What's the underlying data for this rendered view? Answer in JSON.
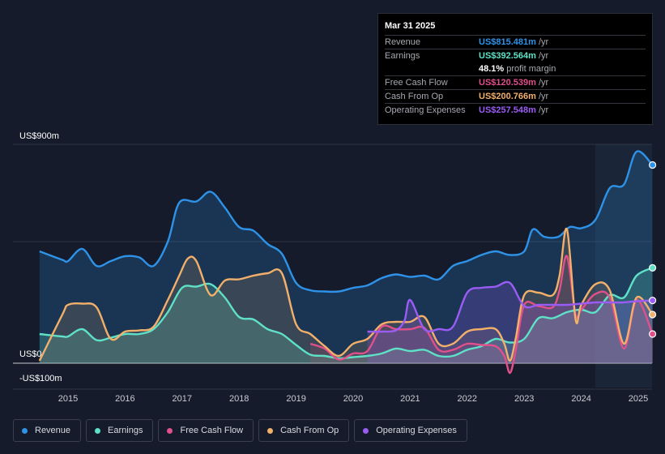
{
  "tooltip": {
    "date": "Mar 31 2025",
    "rows": [
      {
        "name": "Revenue",
        "value": "US$815.481m",
        "unit": "/yr",
        "color": "#2e93e8"
      },
      {
        "name": "Earnings",
        "value": "US$392.564m",
        "unit": "/yr",
        "color": "#5ee1c6"
      },
      {
        "name": "",
        "value": "48.1%",
        "unit": "profit margin",
        "color": "#ffffff"
      },
      {
        "name": "Free Cash Flow",
        "value": "US$120.539m",
        "unit": "/yr",
        "color": "#e0508a"
      },
      {
        "name": "Cash From Op",
        "value": "US$200.766m",
        "unit": "/yr",
        "color": "#f2b06a"
      },
      {
        "name": "Operating Expenses",
        "value": "US$257.548m",
        "unit": "/yr",
        "color": "#9b5cf5"
      }
    ]
  },
  "legend": [
    {
      "label": "Revenue",
      "color": "#2e93e8"
    },
    {
      "label": "Earnings",
      "color": "#5ee1c6"
    },
    {
      "label": "Free Cash Flow",
      "color": "#e0508a"
    },
    {
      "label": "Cash From Op",
      "color": "#f2b06a"
    },
    {
      "label": "Operating Expenses",
      "color": "#9b5cf5"
    }
  ],
  "chart_data": {
    "type": "area",
    "y_axis_labels": [
      "US$900m",
      "US$0",
      "-US$100m"
    ],
    "ylim": [
      -100,
      900
    ],
    "xlim": [
      2014.5,
      2025.25
    ],
    "x_ticks": [
      "2015",
      "2016",
      "2017",
      "2018",
      "2019",
      "2020",
      "2021",
      "2022",
      "2023",
      "2024",
      "2025"
    ],
    "series": [
      {
        "name": "Revenue",
        "color": "#2e93e8",
        "x": [
          2014.5,
          2014.9,
          2015.0,
          2015.25,
          2015.5,
          2015.75,
          2016.0,
          2016.25,
          2016.5,
          2016.75,
          2016.95,
          2017.25,
          2017.5,
          2017.75,
          2018.0,
          2018.25,
          2018.5,
          2018.75,
          2019.0,
          2019.25,
          2019.5,
          2019.75,
          2020.0,
          2020.25,
          2020.5,
          2020.75,
          2021.0,
          2021.25,
          2021.5,
          2021.75,
          2022.0,
          2022.25,
          2022.5,
          2022.75,
          2023.0,
          2023.15,
          2023.35,
          2023.6,
          2023.8,
          2024.0,
          2024.25,
          2024.5,
          2024.75,
          2024.97,
          2025.25
        ],
        "values": [
          460,
          425,
          420,
          470,
          400,
          420,
          440,
          435,
          400,
          500,
          660,
          665,
          705,
          640,
          560,
          545,
          490,
          450,
          330,
          300,
          295,
          295,
          310,
          320,
          350,
          365,
          355,
          360,
          345,
          400,
          420,
          445,
          460,
          445,
          460,
          550,
          520,
          520,
          560,
          555,
          590,
          720,
          735,
          870,
          815
        ]
      },
      {
        "name": "Earnings",
        "color": "#5ee1c6",
        "x": [
          2014.5,
          2014.9,
          2015.0,
          2015.25,
          2015.5,
          2015.75,
          2016.0,
          2016.25,
          2016.5,
          2016.75,
          2017.0,
          2017.25,
          2017.5,
          2017.75,
          2018.0,
          2018.25,
          2018.5,
          2018.75,
          2019.0,
          2019.25,
          2019.5,
          2019.75,
          2020.0,
          2020.25,
          2020.5,
          2020.75,
          2021.0,
          2021.25,
          2021.5,
          2021.75,
          2022.0,
          2022.25,
          2022.5,
          2022.75,
          2023.0,
          2023.25,
          2023.5,
          2023.75,
          2024.0,
          2024.25,
          2024.5,
          2024.75,
          2024.97,
          2025.25
        ],
        "values": [
          120,
          110,
          110,
          140,
          95,
          105,
          120,
          120,
          140,
          210,
          310,
          315,
          325,
          270,
          190,
          180,
          140,
          120,
          75,
          35,
          30,
          20,
          25,
          30,
          40,
          60,
          50,
          55,
          30,
          30,
          55,
          70,
          100,
          85,
          100,
          185,
          185,
          210,
          220,
          210,
          280,
          270,
          360,
          392
        ]
      },
      {
        "name": "Free Cash Flow",
        "color": "#e0508a",
        "x": [
          2019.25,
          2019.5,
          2019.75,
          2020.0,
          2020.25,
          2020.5,
          2020.75,
          2021.0,
          2021.25,
          2021.5,
          2021.75,
          2022.0,
          2022.25,
          2022.5,
          2022.65,
          2022.75,
          2022.85,
          2023.0,
          2023.25,
          2023.5,
          2023.62,
          2023.75,
          2023.9,
          2024.0,
          2024.25,
          2024.5,
          2024.75,
          2024.97,
          2025.25
        ],
        "values": [
          80,
          60,
          15,
          40,
          50,
          150,
          140,
          140,
          145,
          55,
          55,
          80,
          75,
          70,
          30,
          -40,
          50,
          240,
          235,
          230,
          300,
          440,
          200,
          220,
          285,
          270,
          60,
          260,
          120
        ]
      },
      {
        "name": "Cash From Op",
        "color": "#f2b06a",
        "x": [
          2014.5,
          2014.9,
          2015.0,
          2015.25,
          2015.5,
          2015.75,
          2016.0,
          2016.25,
          2016.5,
          2016.75,
          2016.95,
          2017.1,
          2017.25,
          2017.5,
          2017.75,
          2018.0,
          2018.25,
          2018.5,
          2018.75,
          2019.0,
          2019.25,
          2019.5,
          2019.75,
          2020.0,
          2020.25,
          2020.5,
          2020.75,
          2021.0,
          2021.25,
          2021.5,
          2021.75,
          2022.0,
          2022.25,
          2022.5,
          2022.65,
          2022.75,
          2022.85,
          2023.0,
          2023.25,
          2023.5,
          2023.62,
          2023.75,
          2023.9,
          2024.0,
          2024.25,
          2024.5,
          2024.75,
          2024.97,
          2025.25
        ],
        "values": [
          10,
          200,
          240,
          245,
          230,
          100,
          130,
          135,
          150,
          260,
          360,
          430,
          420,
          280,
          340,
          345,
          360,
          370,
          370,
          160,
          120,
          70,
          30,
          80,
          100,
          160,
          170,
          170,
          190,
          80,
          80,
          130,
          140,
          140,
          80,
          10,
          100,
          280,
          290,
          280,
          360,
          550,
          180,
          240,
          325,
          300,
          80,
          270,
          200
        ]
      },
      {
        "name": "Operating Expenses",
        "color": "#9b5cf5",
        "x": [
          2020.25,
          2020.5,
          2020.75,
          2020.9,
          2021.0,
          2021.25,
          2021.5,
          2021.75,
          2022.0,
          2022.25,
          2022.5,
          2022.75,
          2023.0,
          2023.25,
          2023.5,
          2023.75,
          2024.0,
          2024.25,
          2024.5,
          2024.75,
          2024.97,
          2025.25
        ],
        "values": [
          130,
          130,
          135,
          175,
          260,
          140,
          140,
          150,
          290,
          310,
          315,
          330,
          235,
          240,
          240,
          240,
          245,
          250,
          250,
          250,
          255,
          258
        ]
      }
    ]
  }
}
